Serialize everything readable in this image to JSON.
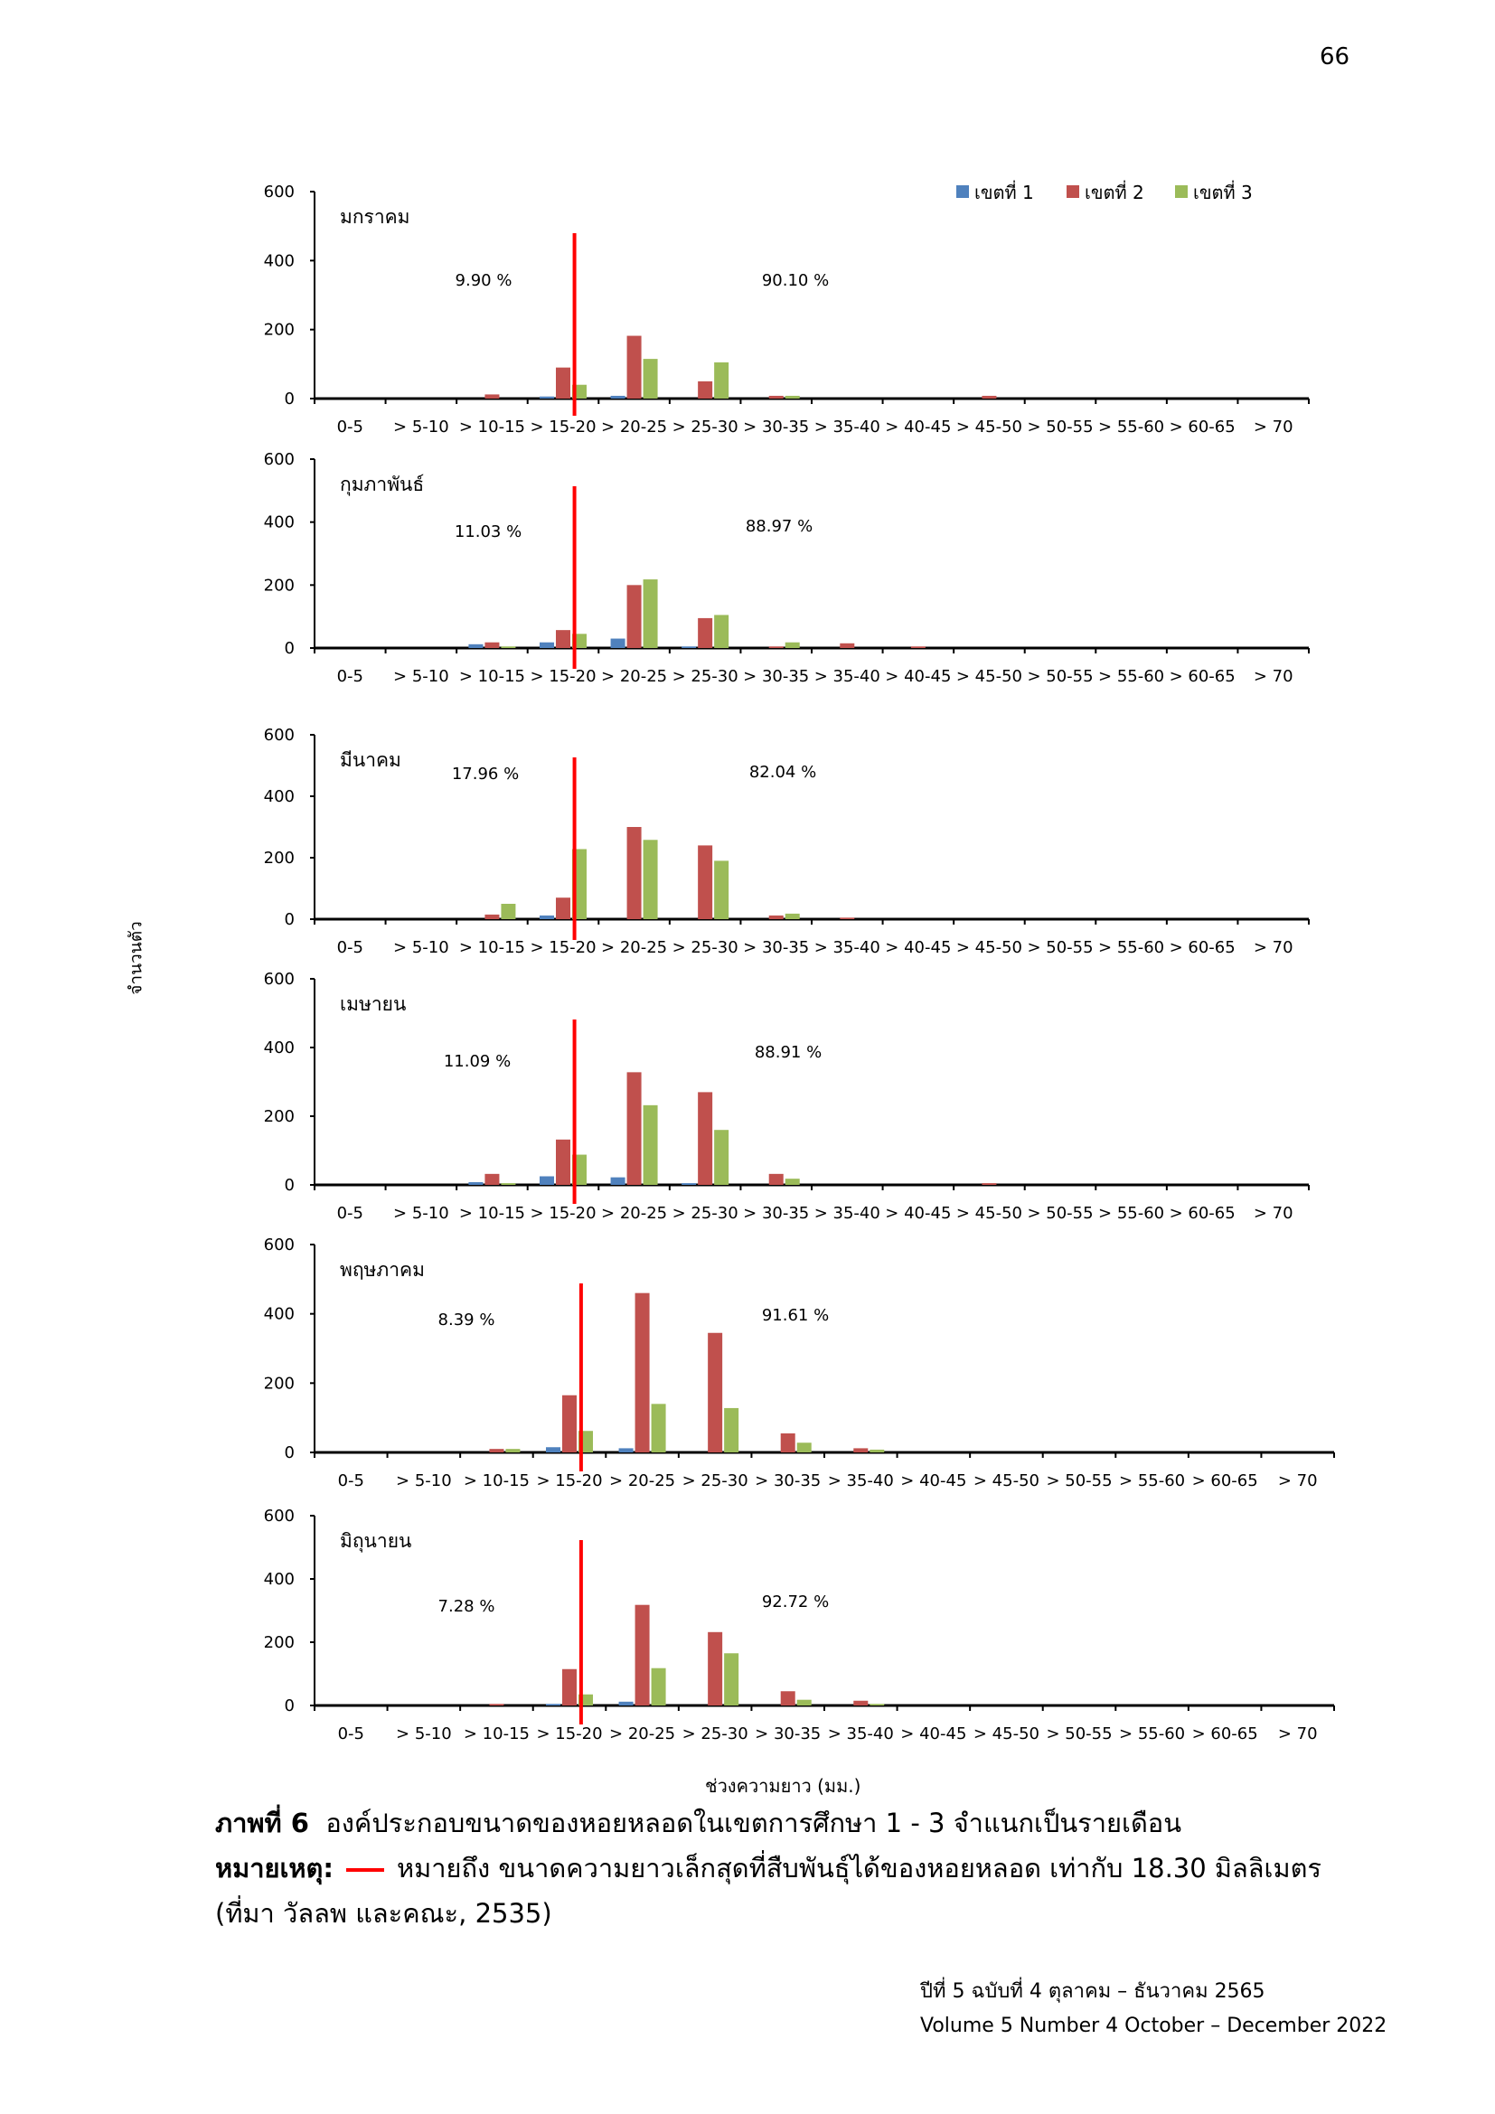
{
  "page": {
    "number": "66",
    "y_axis_title": "จำนวนตัว",
    "x_axis_title": "ช่วงความยาว (มม.)",
    "caption_label": "ภาพที่ 6",
    "caption_text": "องค์ประกอบขนาดของหอยหลอดในเขตการศึกษา 1 - 3 จำแนกเป็นรายเดือน",
    "note_label": "หมายเหตุ:",
    "note_text": "หมายถึง ขนาดความยาวเล็กสุดที่สืบพันธุ์ได้ของหอยหลอด เท่ากับ 18.30 มิลลิเมตร",
    "source_text": "(ที่มา วัลลพ และคณะ, 2535)",
    "footer_line1": "ปีที่ 5 ฉบับที่ 4 ตุลาคม – ธันวาคม 2565",
    "footer_line2": "Volume 5 Number 4 October – December 2022"
  },
  "colors": {
    "series1": "#4f81bd",
    "series2": "#c0504d",
    "series3": "#9bbb59",
    "marker": "#ff0000"
  },
  "chart_data": [
    {
      "type": "bar",
      "title": "มกราคม",
      "categories": [
        "0-5",
        "> 5-10",
        "> 10-15",
        "> 15-20",
        "> 20-25",
        "> 25-30",
        "> 30-35",
        "> 35-40",
        "> 40-45",
        "> 45-50",
        "> 50-55",
        "> 55-60",
        "> 60-65",
        "> 70"
      ],
      "series": [
        {
          "name": "เขตที่ 1",
          "values": [
            0,
            0,
            0,
            6,
            8,
            0,
            0,
            0,
            0,
            0,
            0,
            0,
            0,
            0
          ]
        },
        {
          "name": "เขตที่ 2",
          "values": [
            0,
            0,
            12,
            90,
            182,
            50,
            8,
            0,
            0,
            8,
            0,
            0,
            0,
            0
          ]
        },
        {
          "name": "เขตที่ 3",
          "values": [
            0,
            0,
            0,
            40,
            115,
            105,
            8,
            0,
            0,
            0,
            0,
            0,
            0,
            0
          ]
        }
      ],
      "ylim": [
        0,
        600
      ],
      "yticks": [
        0,
        200,
        400,
        600
      ],
      "annotations": [
        "9.90 %",
        "90.10 %"
      ],
      "marker_x": 18.3
    },
    {
      "type": "bar",
      "title": "กุมภาพันธ์",
      "categories": [
        "0-5",
        "> 5-10",
        "> 10-15",
        "> 15-20",
        "> 20-25",
        "> 25-30",
        "> 30-35",
        "> 35-40",
        "> 40-45",
        "> 45-50",
        "> 50-55",
        "> 55-60",
        "> 60-65",
        "> 70"
      ],
      "series": [
        {
          "name": "เขตที่ 1",
          "values": [
            0,
            0,
            12,
            18,
            30,
            5,
            0,
            0,
            0,
            0,
            0,
            0,
            0,
            0
          ]
        },
        {
          "name": "เขตที่ 2",
          "values": [
            0,
            0,
            18,
            57,
            200,
            95,
            5,
            15,
            5,
            0,
            0,
            0,
            0,
            0
          ]
        },
        {
          "name": "เขตที่ 3",
          "values": [
            0,
            0,
            5,
            45,
            218,
            105,
            18,
            0,
            0,
            0,
            0,
            0,
            0,
            0
          ]
        }
      ],
      "ylim": [
        0,
        600
      ],
      "yticks": [
        0,
        200,
        400,
        600
      ],
      "annotations": [
        "11.03 %",
        "88.97 %"
      ],
      "marker_x": 18.3
    },
    {
      "type": "bar",
      "title": "มีนาคม",
      "categories": [
        "0-5",
        "> 5-10",
        "> 10-15",
        "> 15-20",
        "> 20-25",
        "> 25-30",
        "> 30-35",
        "> 35-40",
        "> 40-45",
        "> 45-50",
        "> 50-55",
        "> 55-60",
        "> 60-65",
        "> 70"
      ],
      "series": [
        {
          "name": "เขตที่ 1",
          "values": [
            0,
            0,
            0,
            12,
            0,
            0,
            0,
            0,
            0,
            0,
            0,
            0,
            0,
            0
          ]
        },
        {
          "name": "เขตที่ 2",
          "values": [
            0,
            0,
            15,
            70,
            300,
            240,
            12,
            5,
            0,
            0,
            0,
            0,
            0,
            0
          ]
        },
        {
          "name": "เขตที่ 3",
          "values": [
            0,
            0,
            50,
            228,
            258,
            190,
            18,
            0,
            0,
            0,
            0,
            0,
            0,
            0
          ]
        }
      ],
      "ylim": [
        0,
        600
      ],
      "yticks": [
        0,
        200,
        400,
        600
      ],
      "annotations": [
        "17.96 %",
        "82.04 %"
      ],
      "marker_x": 18.3
    },
    {
      "type": "bar",
      "title": "เมษายน",
      "categories": [
        "0-5",
        "> 5-10",
        "> 10-15",
        "> 15-20",
        "> 20-25",
        "> 25-30",
        "> 30-35",
        "> 35-40",
        "> 40-45",
        "> 45-50",
        "> 50-55",
        "> 55-60",
        "> 60-65",
        "> 70"
      ],
      "series": [
        {
          "name": "เขตที่ 1",
          "values": [
            0,
            0,
            8,
            25,
            22,
            5,
            0,
            0,
            0,
            0,
            0,
            0,
            0,
            0
          ]
        },
        {
          "name": "เขตที่ 2",
          "values": [
            0,
            0,
            32,
            132,
            328,
            270,
            32,
            0,
            0,
            5,
            0,
            0,
            0,
            0
          ]
        },
        {
          "name": "เขตที่ 3",
          "values": [
            0,
            0,
            5,
            88,
            232,
            160,
            18,
            0,
            0,
            0,
            0,
            0,
            0,
            0
          ]
        }
      ],
      "ylim": [
        0,
        600
      ],
      "yticks": [
        0,
        200,
        400,
        600
      ],
      "annotations": [
        "11.09 %",
        "88.91 %"
      ],
      "marker_x": 18.3
    },
    {
      "type": "bar",
      "title": "พฤษภาคม",
      "categories": [
        "0-5",
        "> 5-10",
        "> 10-15",
        "> 15-20",
        "> 20-25",
        "> 25-30",
        "> 30-35",
        "> 35-40",
        "> 40-45",
        "> 45-50",
        "> 50-55",
        "> 55-60",
        "> 60-65",
        "> 70"
      ],
      "series": [
        {
          "name": "เขตที่ 1",
          "values": [
            0,
            0,
            0,
            15,
            12,
            0,
            0,
            0,
            0,
            0,
            0,
            0,
            0,
            0
          ]
        },
        {
          "name": "เขตที่ 2",
          "values": [
            0,
            0,
            10,
            165,
            460,
            345,
            55,
            12,
            0,
            0,
            0,
            0,
            0,
            0
          ]
        },
        {
          "name": "เขตที่ 3",
          "values": [
            0,
            0,
            10,
            62,
            140,
            128,
            28,
            8,
            0,
            0,
            0,
            0,
            0,
            0
          ]
        }
      ],
      "ylim": [
        0,
        600
      ],
      "yticks": [
        0,
        200,
        400,
        600
      ],
      "annotations": [
        "8.39 %",
        "91.61 %"
      ],
      "marker_x": 18.3
    },
    {
      "type": "bar",
      "title": "มิถุนายน",
      "categories": [
        "0-5",
        "> 5-10",
        "> 10-15",
        "> 15-20",
        "> 20-25",
        "> 25-30",
        "> 30-35",
        "> 35-40",
        "> 40-45",
        "> 45-50",
        "> 50-55",
        "> 55-60",
        "> 60-65",
        "> 70"
      ],
      "series": [
        {
          "name": "เขตที่ 1",
          "values": [
            0,
            0,
            0,
            5,
            12,
            0,
            0,
            0,
            0,
            0,
            0,
            0,
            0,
            0
          ]
        },
        {
          "name": "เขตที่ 2",
          "values": [
            0,
            0,
            5,
            115,
            318,
            232,
            45,
            15,
            0,
            0,
            0,
            0,
            0,
            0
          ]
        },
        {
          "name": "เขตที่ 3",
          "values": [
            0,
            0,
            0,
            35,
            118,
            165,
            18,
            5,
            0,
            0,
            0,
            0,
            0,
            0
          ]
        }
      ],
      "ylim": [
        0,
        600
      ],
      "yticks": [
        0,
        200,
        400,
        600
      ],
      "annotations": [
        "7.28 %",
        "92.72 %"
      ],
      "marker_x": 18.3
    }
  ]
}
